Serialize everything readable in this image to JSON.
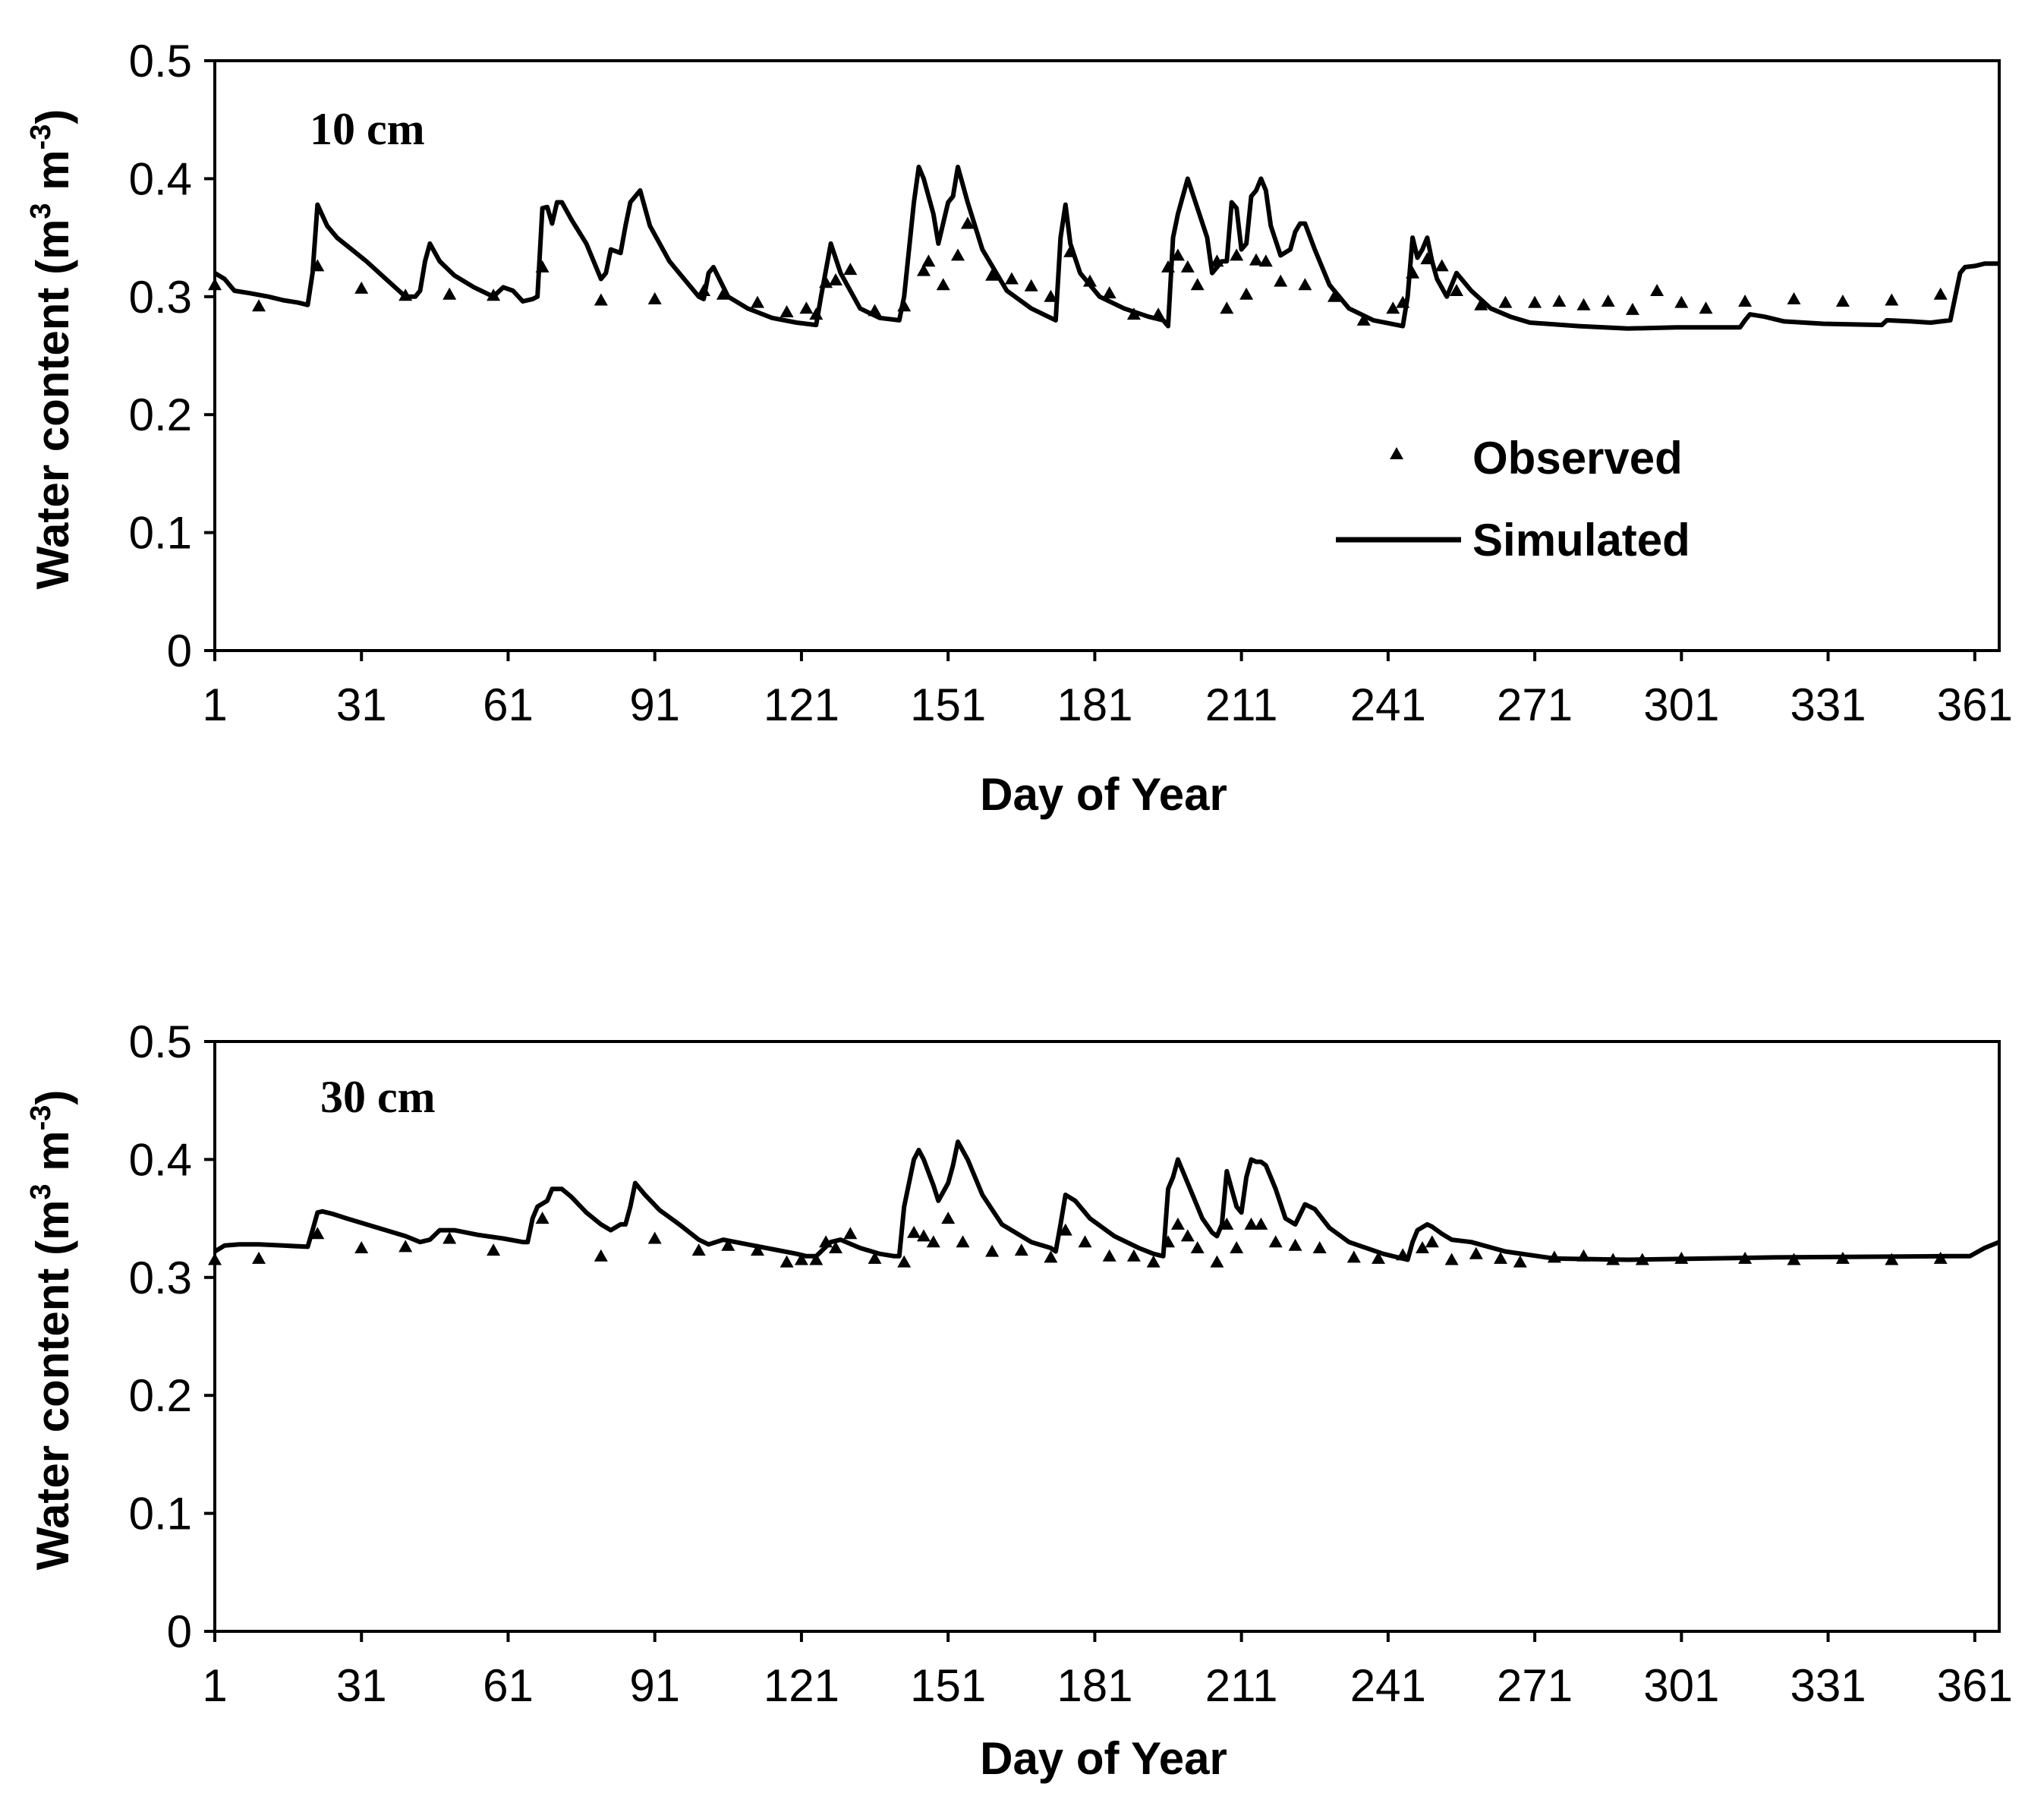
{
  "chart_data": [
    {
      "type": "line",
      "panel_label": "10 cm",
      "xlabel": "Day of Year",
      "ylabel": {
        "main": "Water content (m",
        "sup1": "3",
        "mid": " m",
        "sup2": "-3",
        "end": ")"
      },
      "xlim": [
        1,
        366
      ],
      "ylim": [
        0,
        0.5
      ],
      "x_ticks": [
        1,
        31,
        61,
        91,
        121,
        151,
        181,
        211,
        241,
        271,
        301,
        331,
        361
      ],
      "y_ticks": [
        0,
        0.1,
        0.2,
        0.3,
        0.4,
        0.5
      ],
      "y_tick_labels": [
        "0",
        "0.1",
        "0.2",
        "0.3",
        "0.4",
        "0.5"
      ],
      "legend": {
        "position": "lower-right",
        "observed_label": "Observed",
        "simulated_label": "Simulated"
      },
      "series": [
        {
          "name": "Simulated",
          "style": "line",
          "x": [
            1,
            3,
            5,
            8,
            12,
            15,
            18,
            20,
            21,
            22,
            24,
            26,
            29,
            32,
            36,
            40,
            42,
            43,
            44,
            45,
            47,
            50,
            54,
            58,
            60,
            62,
            64,
            66,
            67,
            68,
            69,
            70,
            71,
            72,
            74,
            77,
            80,
            81,
            82,
            84,
            85,
            86,
            88,
            90,
            94,
            98,
            100,
            101,
            102,
            103,
            106,
            110,
            115,
            120,
            124,
            125,
            127,
            129,
            133,
            137,
            141,
            142,
            144,
            145,
            146,
            148,
            149,
            151,
            152,
            153,
            155,
            158,
            163,
            168,
            173,
            174,
            175,
            176,
            178,
            182,
            187,
            192,
            195,
            196,
            197,
            198,
            200,
            204,
            205,
            207,
            208,
            209,
            210,
            211,
            212,
            213,
            214,
            215,
            216,
            217,
            219,
            221,
            222,
            223,
            224,
            226,
            229,
            233,
            238,
            244,
            245,
            246,
            247,
            248,
            249,
            250,
            251,
            253,
            254,
            255,
            258,
            262,
            266,
            270,
            280,
            290,
            300,
            313,
            314,
            315,
            318,
            322,
            330,
            342,
            343,
            348,
            352,
            356,
            357,
            358,
            359,
            361,
            363,
            366
          ],
          "y": [
            0.32,
            0.315,
            0.305,
            0.303,
            0.3,
            0.297,
            0.295,
            0.293,
            0.32,
            0.378,
            0.36,
            0.35,
            0.34,
            0.33,
            0.315,
            0.3,
            0.3,
            0.305,
            0.33,
            0.345,
            0.33,
            0.318,
            0.308,
            0.3,
            0.308,
            0.305,
            0.296,
            0.298,
            0.3,
            0.375,
            0.376,
            0.362,
            0.38,
            0.38,
            0.365,
            0.345,
            0.315,
            0.32,
            0.34,
            0.337,
            0.36,
            0.38,
            0.39,
            0.36,
            0.33,
            0.31,
            0.3,
            0.298,
            0.32,
            0.325,
            0.3,
            0.29,
            0.282,
            0.278,
            0.276,
            0.3,
            0.345,
            0.32,
            0.29,
            0.282,
            0.28,
            0.3,
            0.38,
            0.41,
            0.4,
            0.37,
            0.345,
            0.38,
            0.385,
            0.41,
            0.38,
            0.34,
            0.305,
            0.29,
            0.28,
            0.35,
            0.378,
            0.345,
            0.32,
            0.3,
            0.29,
            0.283,
            0.28,
            0.275,
            0.35,
            0.37,
            0.4,
            0.35,
            0.32,
            0.33,
            0.33,
            0.38,
            0.375,
            0.34,
            0.345,
            0.385,
            0.39,
            0.4,
            0.39,
            0.36,
            0.335,
            0.34,
            0.355,
            0.362,
            0.362,
            0.34,
            0.31,
            0.29,
            0.28,
            0.275,
            0.3,
            0.35,
            0.333,
            0.34,
            0.35,
            0.33,
            0.315,
            0.3,
            0.31,
            0.32,
            0.305,
            0.29,
            0.283,
            0.278,
            0.275,
            0.273,
            0.274,
            0.274,
            0.28,
            0.285,
            0.283,
            0.279,
            0.277,
            0.276,
            0.28,
            0.279,
            0.278,
            0.28,
            0.3,
            0.32,
            0.325,
            0.326,
            0.328,
            0.328
          ]
        },
        {
          "name": "Observed",
          "style": "markers",
          "x": [
            1,
            10,
            22,
            31,
            40,
            49,
            58,
            68,
            80,
            91,
            101,
            105,
            112,
            118,
            122,
            124,
            126,
            128,
            131,
            136,
            142,
            146,
            147,
            150,
            153,
            155,
            160,
            164,
            168,
            172,
            176,
            180,
            184,
            189,
            194,
            196,
            198,
            200,
            202,
            206,
            208,
            210,
            212,
            214,
            216,
            219,
            224,
            230,
            236,
            242,
            244,
            246,
            249,
            252,
            255,
            260,
            265,
            271,
            276,
            281,
            286,
            291,
            296,
            301,
            306,
            314,
            324,
            334,
            344,
            354
          ],
          "y": [
            0.31,
            0.292,
            0.326,
            0.307,
            0.301,
            0.302,
            0.301,
            0.325,
            0.297,
            0.298,
            0.305,
            0.302,
            0.295,
            0.287,
            0.29,
            0.285,
            0.312,
            0.314,
            0.323,
            0.288,
            0.292,
            0.322,
            0.33,
            0.31,
            0.335,
            0.362,
            0.318,
            0.315,
            0.309,
            0.3,
            0.338,
            0.313,
            0.303,
            0.285,
            0.285,
            0.325,
            0.335,
            0.325,
            0.31,
            0.33,
            0.29,
            0.335,
            0.302,
            0.331,
            0.33,
            0.313,
            0.31,
            0.3,
            0.28,
            0.29,
            0.295,
            0.32,
            0.332,
            0.326,
            0.305,
            0.293,
            0.295,
            0.295,
            0.296,
            0.293,
            0.296,
            0.289,
            0.305,
            0.295,
            0.29,
            0.296,
            0.298,
            0.296,
            0.297,
            0.302
          ]
        }
      ]
    },
    {
      "type": "line",
      "panel_label": "30 cm",
      "xlabel": "Day of Year",
      "ylabel": {
        "main": "Water content (m",
        "sup1": "3",
        "mid": " m",
        "sup2": "-3",
        "end": ")"
      },
      "xlim": [
        1,
        366
      ],
      "ylim": [
        0,
        0.5
      ],
      "x_ticks": [
        1,
        31,
        61,
        91,
        121,
        151,
        181,
        211,
        241,
        271,
        301,
        331,
        361
      ],
      "y_ticks": [
        0,
        0.1,
        0.2,
        0.3,
        0.4,
        0.5
      ],
      "y_tick_labels": [
        "0",
        "0.1",
        "0.2",
        "0.3",
        "0.4",
        "0.5"
      ],
      "series": [
        {
          "name": "Simulated",
          "style": "line",
          "x": [
            1,
            3,
            6,
            10,
            15,
            20,
            21,
            22,
            23,
            25,
            28,
            32,
            36,
            40,
            43,
            45,
            47,
            50,
            55,
            60,
            64,
            65,
            66,
            67,
            69,
            70,
            71,
            72,
            74,
            77,
            80,
            82,
            84,
            85,
            86,
            87,
            89,
            92,
            96,
            100,
            102,
            105,
            110,
            115,
            120,
            122,
            124,
            125,
            127,
            129,
            133,
            137,
            140,
            141,
            142,
            144,
            145,
            146,
            148,
            149,
            151,
            152,
            153,
            155,
            158,
            162,
            168,
            172,
            173,
            174,
            175,
            177,
            180,
            185,
            190,
            193,
            195,
            196,
            197,
            198,
            200,
            202,
            203,
            205,
            206,
            207,
            208,
            209,
            210,
            211,
            212,
            213,
            214,
            215,
            216,
            218,
            220,
            222,
            224,
            226,
            229,
            233,
            240,
            245,
            246,
            247,
            249,
            250,
            252,
            254,
            258,
            265,
            275,
            290,
            320,
            355,
            360,
            363,
            366
          ],
          "y": [
            0.322,
            0.327,
            0.328,
            0.328,
            0.327,
            0.326,
            0.34,
            0.355,
            0.356,
            0.354,
            0.35,
            0.345,
            0.34,
            0.335,
            0.33,
            0.332,
            0.34,
            0.34,
            0.336,
            0.333,
            0.33,
            0.33,
            0.35,
            0.36,
            0.365,
            0.375,
            0.375,
            0.375,
            0.368,
            0.355,
            0.345,
            0.34,
            0.345,
            0.345,
            0.36,
            0.38,
            0.37,
            0.357,
            0.345,
            0.332,
            0.328,
            0.332,
            0.328,
            0.324,
            0.32,
            0.318,
            0.318,
            0.322,
            0.33,
            0.332,
            0.325,
            0.32,
            0.318,
            0.318,
            0.36,
            0.4,
            0.408,
            0.4,
            0.378,
            0.365,
            0.38,
            0.395,
            0.415,
            0.4,
            0.37,
            0.345,
            0.33,
            0.325,
            0.322,
            0.345,
            0.37,
            0.365,
            0.35,
            0.335,
            0.325,
            0.32,
            0.318,
            0.375,
            0.385,
            0.4,
            0.38,
            0.36,
            0.35,
            0.338,
            0.335,
            0.345,
            0.39,
            0.375,
            0.36,
            0.355,
            0.385,
            0.4,
            0.398,
            0.398,
            0.395,
            0.375,
            0.35,
            0.345,
            0.362,
            0.358,
            0.342,
            0.33,
            0.32,
            0.315,
            0.33,
            0.34,
            0.345,
            0.343,
            0.337,
            0.332,
            0.33,
            0.322,
            0.316,
            0.315,
            0.317,
            0.318,
            0.318,
            0.325,
            0.33
          ]
        },
        {
          "name": "Observed",
          "style": "markers",
          "x": [
            1,
            10,
            22,
            31,
            40,
            49,
            58,
            68,
            80,
            91,
            100,
            106,
            112,
            118,
            121,
            124,
            126,
            128,
            131,
            136,
            142,
            144,
            146,
            148,
            151,
            154,
            160,
            166,
            172,
            175,
            179,
            184,
            189,
            193,
            196,
            198,
            200,
            202,
            206,
            208,
            210,
            213,
            215,
            218,
            222,
            227,
            234,
            239,
            244,
            248,
            250,
            254,
            259,
            264,
            268,
            275,
            281,
            287,
            293,
            301,
            314,
            324,
            334,
            344,
            354
          ],
          "y": [
            0.315,
            0.316,
            0.337,
            0.325,
            0.326,
            0.333,
            0.323,
            0.35,
            0.318,
            0.333,
            0.323,
            0.327,
            0.323,
            0.313,
            0.315,
            0.315,
            0.33,
            0.325,
            0.337,
            0.316,
            0.313,
            0.338,
            0.335,
            0.33,
            0.35,
            0.33,
            0.322,
            0.323,
            0.317,
            0.34,
            0.33,
            0.318,
            0.318,
            0.313,
            0.33,
            0.345,
            0.335,
            0.325,
            0.313,
            0.345,
            0.325,
            0.345,
            0.345,
            0.33,
            0.327,
            0.325,
            0.317,
            0.316,
            0.319,
            0.325,
            0.33,
            0.315,
            0.32,
            0.316,
            0.313,
            0.317,
            0.318,
            0.315,
            0.315,
            0.316,
            0.316,
            0.315,
            0.316,
            0.315,
            0.316
          ]
        }
      ]
    }
  ]
}
